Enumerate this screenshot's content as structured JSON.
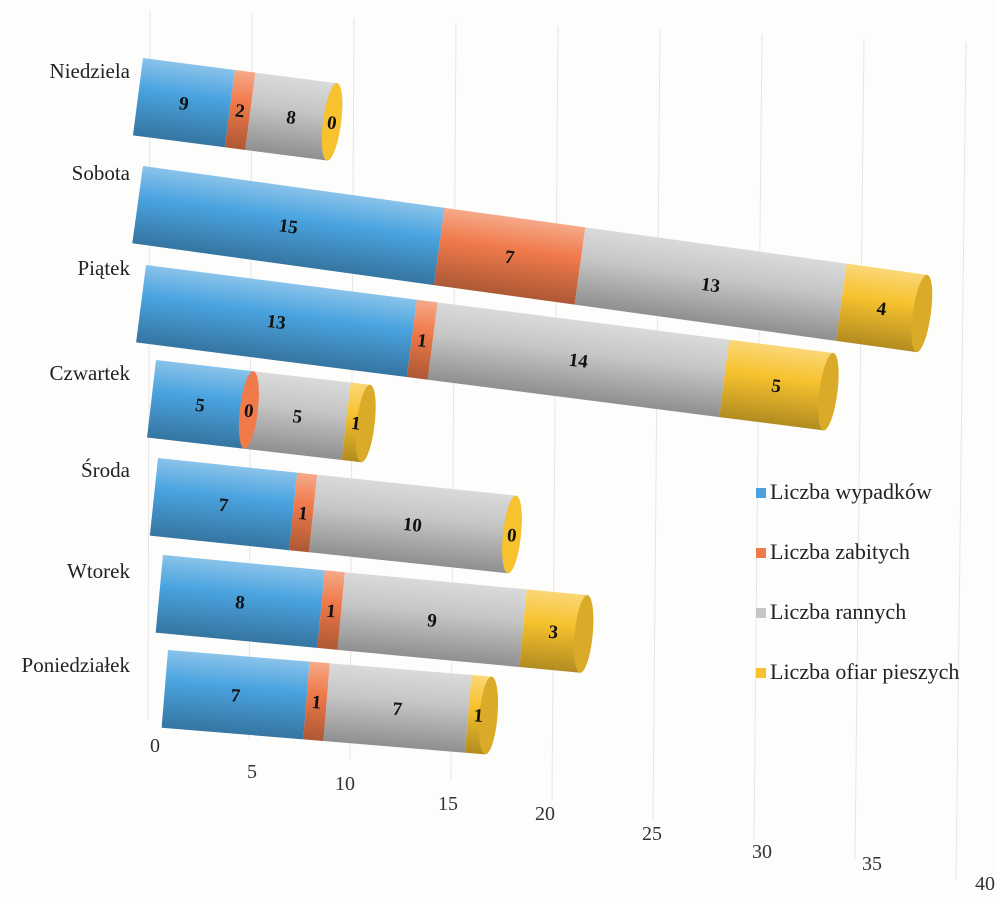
{
  "chart_data": {
    "type": "bar",
    "orientation": "horizontal",
    "stacked": true,
    "style": "3d-cylinder",
    "categories": [
      "Niedziela",
      "Sobota",
      "Piątek",
      "Czwartek",
      "Środa",
      "Wtorek",
      "Poniedziałek"
    ],
    "series": [
      {
        "name": "Liczba wypadków",
        "color": "#4aa3df",
        "values": [
          9,
          15,
          13,
          5,
          7,
          8,
          7
        ]
      },
      {
        "name": "Liczba zabitych",
        "color": "#f07a4a",
        "values": [
          2,
          7,
          1,
          0,
          1,
          1,
          1
        ]
      },
      {
        "name": "Liczba rannych",
        "color": "#c6c6c6",
        "values": [
          8,
          13,
          14,
          5,
          10,
          9,
          7
        ]
      },
      {
        "name": "Liczba ofiar pieszych",
        "color": "#f7c22e",
        "values": [
          0,
          4,
          5,
          1,
          0,
          3,
          1
        ]
      }
    ],
    "x_ticks": [
      "0",
      "5",
      "10",
      "15",
      "20",
      "25",
      "30",
      "35",
      "40"
    ],
    "xlim": [
      0,
      40
    ],
    "legend_position": "right",
    "grid": true,
    "title": "",
    "xlabel": "",
    "ylabel": ""
  }
}
